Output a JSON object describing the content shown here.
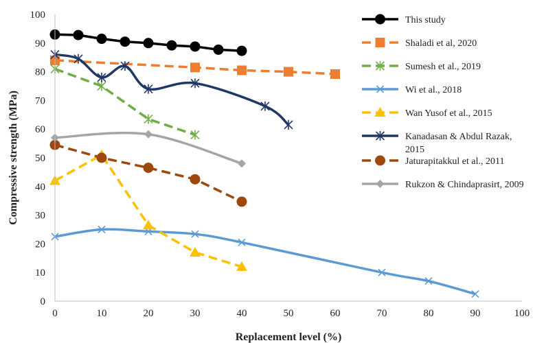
{
  "chart_data": {
    "type": "line",
    "title": "",
    "xlabel": "Replacement level (%)",
    "ylabel": "Compressive strength (MPa)",
    "xlim": [
      0,
      100
    ],
    "ylim": [
      0,
      100
    ],
    "xticks": [
      "0",
      "10",
      "20",
      "30",
      "40",
      "50",
      "60",
      "70",
      "80",
      "90",
      "100"
    ],
    "yticks": [
      "0",
      "10",
      "20",
      "30",
      "40",
      "50",
      "60",
      "70",
      "80",
      "90",
      "100"
    ],
    "grid": false,
    "legend_position": "right",
    "series": [
      {
        "name": "This study",
        "color": "#000000",
        "dash": "solid",
        "marker": "circle",
        "smooth": false,
        "x": [
          0,
          5,
          10,
          15,
          20,
          25,
          30,
          35,
          40
        ],
        "y": [
          93.0,
          92.8,
          91.5,
          90.5,
          90.0,
          89.2,
          88.8,
          87.7,
          87.3
        ]
      },
      {
        "name": "Shaladi et al, 2020",
        "color": "#ED7D31",
        "dash": "dashed",
        "marker": "square",
        "smooth": false,
        "x": [
          0,
          30,
          40,
          50,
          60
        ],
        "y": [
          84.0,
          81.5,
          80.5,
          80.0,
          79.2
        ]
      },
      {
        "name": "Sumesh et al., 2019",
        "color": "#70AD47",
        "dash": "dashed",
        "marker": "star",
        "smooth": false,
        "x": [
          0,
          10,
          20,
          30
        ],
        "y": [
          81.0,
          75.0,
          63.5,
          58.0
        ]
      },
      {
        "name": "Wi et al., 2018",
        "color": "#5B9BD5",
        "dash": "solid",
        "marker": "x",
        "smooth": true,
        "x": [
          0,
          10,
          20,
          30,
          40,
          70,
          80,
          90
        ],
        "y": [
          22.5,
          25.0,
          24.3,
          23.4,
          20.5,
          10.0,
          7.0,
          2.5
        ]
      },
      {
        "name": "Wan Yusof et al., 2015",
        "color": "#FFC000",
        "dash": "dashed",
        "marker": "triangle",
        "smooth": false,
        "x": [
          0,
          10,
          20,
          30,
          40
        ],
        "y": [
          42.0,
          51.0,
          26.5,
          17.0,
          12.0
        ]
      },
      {
        "name": "Kanadasan & Abdul Razak, 2015",
        "color": "#1F3864",
        "dash": "solid",
        "marker": "star",
        "smooth": true,
        "x": [
          0,
          5,
          10,
          15,
          20,
          30,
          45,
          50
        ],
        "y": [
          86.0,
          84.5,
          78.0,
          82.0,
          74.0,
          76.0,
          68.0,
          61.5
        ]
      },
      {
        "name": "Jaturapitakkul et al., 2011",
        "color": "#9E480E",
        "dash": "dashed",
        "marker": "circle",
        "smooth": false,
        "x": [
          0,
          10,
          20,
          30,
          40
        ],
        "y": [
          54.5,
          50.0,
          46.5,
          42.5,
          34.7
        ]
      },
      {
        "name": "Rukzon & Chindaprasirt, 2009",
        "color": "#A5A5A5",
        "dash": "solid",
        "marker": "diamond",
        "smooth": true,
        "x": [
          0,
          20,
          40
        ],
        "y": [
          57.0,
          58.2,
          48.0
        ]
      }
    ]
  }
}
